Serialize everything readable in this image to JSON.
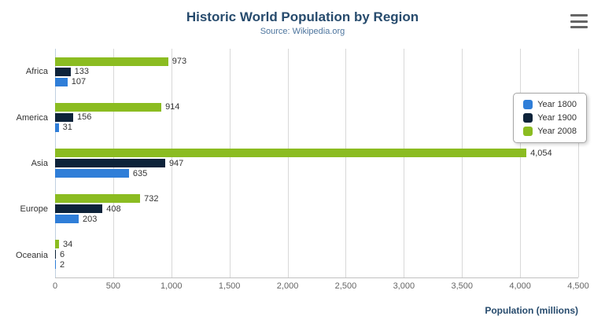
{
  "header": {
    "title": "Historic World Population by Region",
    "subtitle": "Source: Wikipedia.org"
  },
  "export_menu_icon": "hamburger-icon",
  "chart_data": {
    "type": "bar",
    "orientation": "horizontal",
    "title": "Historic World Population by Region",
    "subtitle": "Source: Wikipedia.org",
    "categories": [
      "Africa",
      "America",
      "Asia",
      "Europe",
      "Oceania"
    ],
    "series": [
      {
        "name": "Year 1800",
        "color": "#2f7ed8",
        "values": [
          107,
          31,
          635,
          203,
          2
        ]
      },
      {
        "name": "Year 1900",
        "color": "#0d233a",
        "values": [
          133,
          156,
          947,
          408,
          6
        ]
      },
      {
        "name": "Year 2008",
        "color": "#8bbc21",
        "values": [
          973,
          914,
          4054,
          732,
          34
        ]
      }
    ],
    "display_order_top_to_bottom": [
      "Year 2008",
      "Year 1900",
      "Year 1800"
    ],
    "xlabel": "Population (millions)",
    "ylabel": "",
    "xlim": [
      0,
      4500
    ],
    "xticks": [
      0,
      500,
      1000,
      1500,
      2000,
      2500,
      3000,
      3500,
      4000,
      4500
    ],
    "grid": true,
    "legend_position": "right"
  }
}
